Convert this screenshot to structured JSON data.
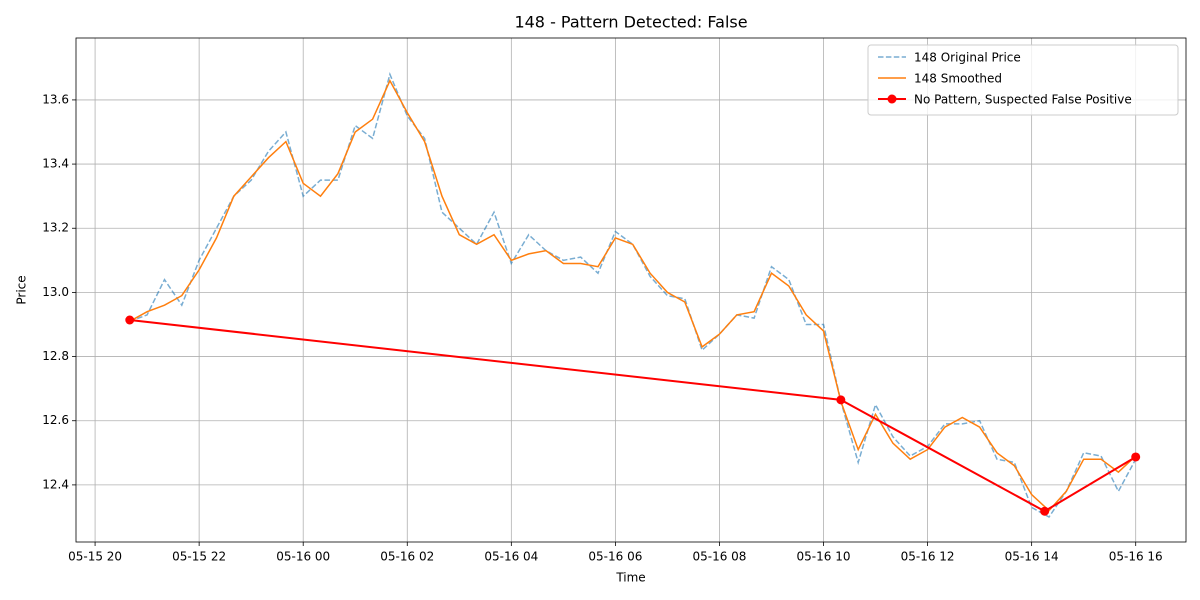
{
  "chart_data": {
    "type": "line",
    "title": "148 - Pattern Detected: False",
    "xlabel": "Time",
    "ylabel": "Price",
    "x": [
      "05-15 20:40",
      "05-15 21:00",
      "05-15 21:20",
      "05-15 21:40",
      "05-15 22:00",
      "05-15 22:20",
      "05-15 22:40",
      "05-15 23:00",
      "05-15 23:20",
      "05-15 23:40",
      "05-16 00:00",
      "05-16 00:20",
      "05-16 00:40",
      "05-16 01:00",
      "05-16 01:20",
      "05-16 01:40",
      "05-16 02:00",
      "05-16 02:20",
      "05-16 02:40",
      "05-16 03:00",
      "05-16 03:20",
      "05-16 03:40",
      "05-16 04:00",
      "05-16 04:20",
      "05-16 04:40",
      "05-16 05:00",
      "05-16 05:20",
      "05-16 05:40",
      "05-16 06:00",
      "05-16 06:20",
      "05-16 06:40",
      "05-16 07:00",
      "05-16 07:20",
      "05-16 07:40",
      "05-16 08:00",
      "05-16 08:20",
      "05-16 08:40",
      "05-16 09:00",
      "05-16 09:20",
      "05-16 09:40",
      "05-16 10:00",
      "05-16 10:20",
      "05-16 10:40",
      "05-16 11:00",
      "05-16 11:20",
      "05-16 11:40",
      "05-16 12:00",
      "05-16 12:20",
      "05-16 12:40",
      "05-16 13:00",
      "05-16 13:20",
      "05-16 13:40",
      "05-16 14:00",
      "05-16 14:20",
      "05-16 14:40",
      "05-16 15:00",
      "05-16 15:20",
      "05-16 15:40",
      "05-16 16:00"
    ],
    "series": [
      {
        "name": "148 Original Price",
        "color": "#1f77b4",
        "linestyle": "dashed",
        "opacity": 0.6,
        "values": [
          12.91,
          12.93,
          13.04,
          12.96,
          13.1,
          13.2,
          13.3,
          13.35,
          13.44,
          13.5,
          13.3,
          13.35,
          13.35,
          13.52,
          13.48,
          13.68,
          13.55,
          13.48,
          13.25,
          13.2,
          13.15,
          13.25,
          13.09,
          13.18,
          13.13,
          13.1,
          13.11,
          13.06,
          13.19,
          13.15,
          13.05,
          12.99,
          12.98,
          12.82,
          12.87,
          12.93,
          12.92,
          13.08,
          13.04,
          12.9,
          12.9,
          12.66,
          12.47,
          12.65,
          12.55,
          12.49,
          12.52,
          12.59,
          12.59,
          12.6,
          12.48,
          12.47,
          12.33,
          12.3,
          12.38,
          12.5,
          12.49,
          12.38,
          12.48
        ]
      },
      {
        "name": "148 Smoothed",
        "color": "#ff7f0e",
        "linestyle": "solid",
        "values": [
          12.91,
          12.94,
          12.96,
          12.99,
          13.07,
          13.17,
          13.3,
          13.36,
          13.42,
          13.47,
          13.34,
          13.3,
          13.37,
          13.5,
          13.54,
          13.66,
          13.56,
          13.47,
          13.3,
          13.18,
          13.15,
          13.18,
          13.1,
          13.12,
          13.13,
          13.09,
          13.09,
          13.08,
          13.17,
          13.15,
          13.06,
          13.0,
          12.97,
          12.83,
          12.87,
          12.93,
          12.94,
          13.06,
          13.02,
          12.93,
          12.88,
          12.66,
          12.51,
          12.62,
          12.53,
          12.48,
          12.51,
          12.58,
          12.61,
          12.58,
          12.5,
          12.46,
          12.37,
          12.32,
          12.38,
          12.48,
          12.48,
          12.44,
          12.49
        ]
      },
      {
        "name": "No Pattern, Suspected False Positive",
        "color": "#ff0000",
        "linestyle": "solid",
        "marker": "o",
        "x": [
          "05-15 20:40",
          "05-16 10:20",
          "05-16 14:15",
          "05-16 16:00"
        ],
        "values": [
          12.914,
          12.665,
          12.318,
          12.487
        ]
      }
    ],
    "xlim": [
      "05-15 19:38",
      "05-16 16:58"
    ],
    "xticks": [
      {
        "value": "05-15 20:00",
        "label": "05-15 20"
      },
      {
        "value": "05-15 22:00",
        "label": "05-15 22"
      },
      {
        "value": "05-16 00:00",
        "label": "05-16 00"
      },
      {
        "value": "05-16 02:00",
        "label": "05-16 02"
      },
      {
        "value": "05-16 04:00",
        "label": "05-16 04"
      },
      {
        "value": "05-16 06:00",
        "label": "05-16 06"
      },
      {
        "value": "05-16 08:00",
        "label": "05-16 08"
      },
      {
        "value": "05-16 10:00",
        "label": "05-16 10"
      },
      {
        "value": "05-16 12:00",
        "label": "05-16 12"
      },
      {
        "value": "05-16 14:00",
        "label": "05-16 14"
      },
      {
        "value": "05-16 16:00",
        "label": "05-16 16"
      }
    ],
    "ylim": [
      12.222,
      13.793
    ],
    "yticks": [
      12.4,
      12.6,
      12.8,
      {
        "value": 13,
        "label": "13.0"
      },
      13.2,
      13.4,
      13.6
    ],
    "grid": true,
    "legend": "upper right"
  }
}
